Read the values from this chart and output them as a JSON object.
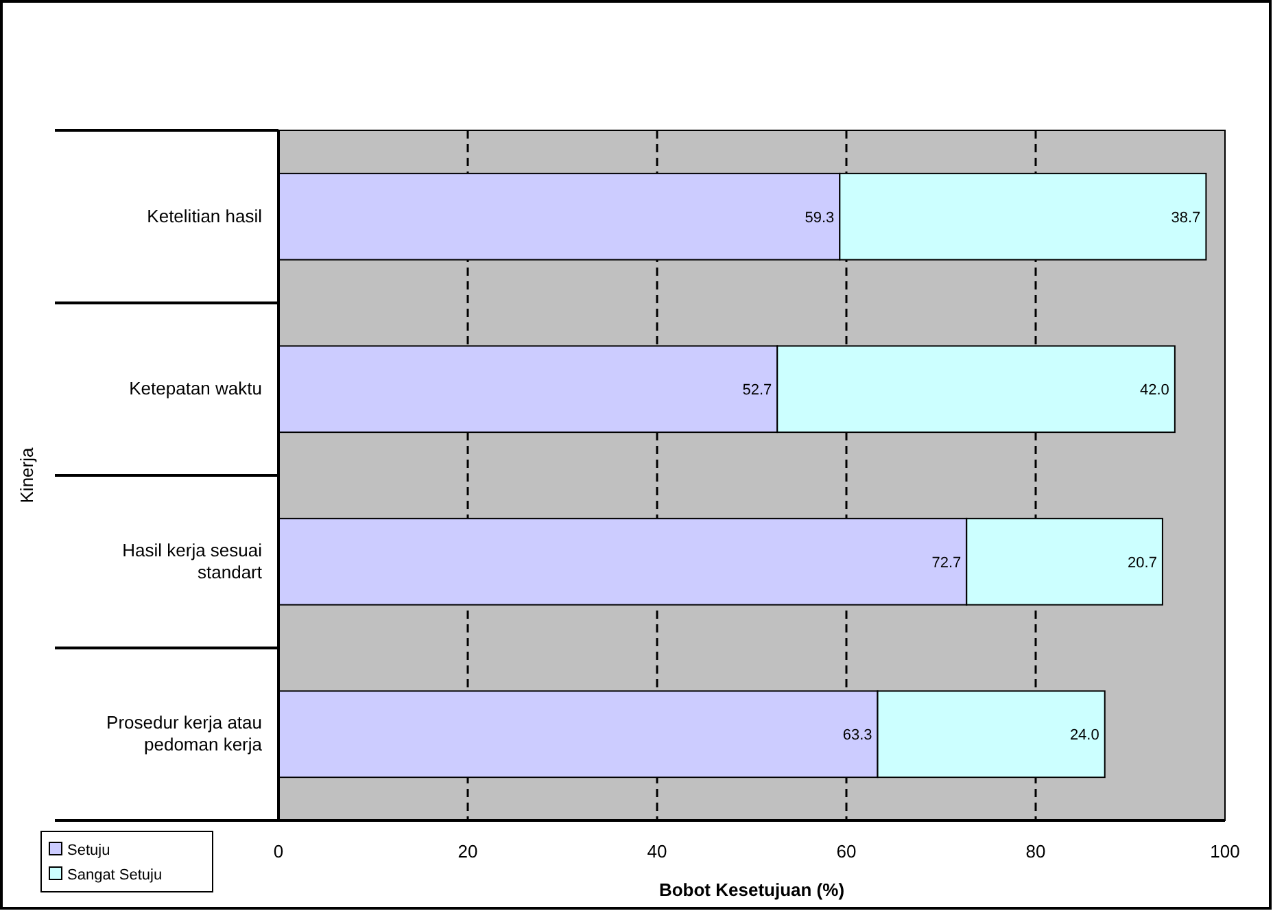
{
  "chart_data": {
    "type": "bar",
    "orientation": "horizontal",
    "stacked": true,
    "categories": [
      "Ketelitian hasil",
      "Ketepatan waktu",
      "Hasil kerja sesuai standart",
      "Prosedur kerja atau pedoman kerja"
    ],
    "series": [
      {
        "name": "Setuju",
        "color": "#ccccff",
        "values": [
          59.3,
          52.7,
          72.7,
          63.3
        ]
      },
      {
        "name": "Sangat Setuju",
        "color": "#ccffff",
        "values": [
          38.7,
          42.0,
          20.7,
          24.0
        ]
      }
    ],
    "value_labels": [
      [
        "59.3",
        "52.7",
        "72.7",
        "63.3"
      ],
      [
        "38.7",
        "42.0",
        "20.7",
        "24.0"
      ]
    ],
    "xlabel": "Bobot Kesetujuan (%)",
    "ylabel": "Kinerja",
    "xlim": [
      0,
      100
    ],
    "xticks": [
      0,
      20,
      40,
      60,
      80,
      100
    ],
    "grid": "x",
    "legend": "bottom left"
  }
}
